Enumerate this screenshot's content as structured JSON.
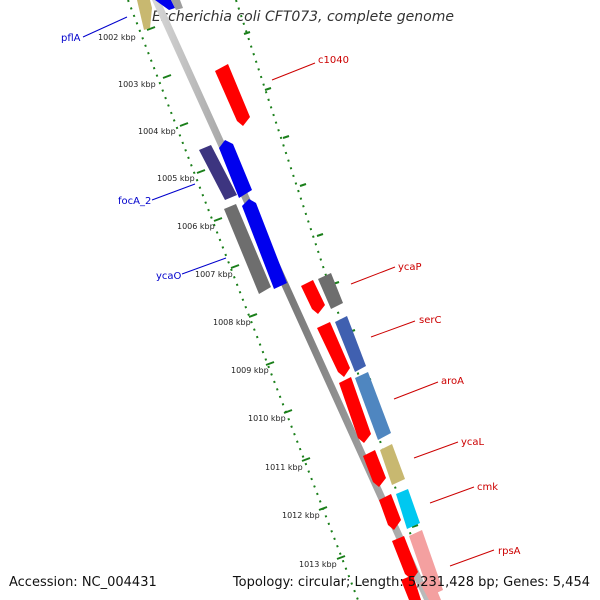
{
  "title": "Escherichia coli CFT073, complete genome",
  "footer": {
    "accession": "Accession: NC_004431",
    "summary": "Topology: circular; Length: 5,231,428 bp; Genes: 5,454"
  },
  "ruler": {
    "ticks": [
      "1002 kbp",
      "1003 kbp",
      "1004 kbp",
      "1005 kbp",
      "1006 kbp",
      "1007 kbp",
      "1008 kbp",
      "1009 kbp",
      "1010 kbp",
      "1011 kbp",
      "1012 kbp",
      "1013 kbp"
    ]
  },
  "genes": {
    "reverse": [
      {
        "label": "pflA"
      },
      {
        "label": "focA_2"
      },
      {
        "label": "ycaO"
      }
    ],
    "forward": [
      {
        "label": "c1040"
      },
      {
        "label": "ycaP"
      },
      {
        "label": "serC"
      },
      {
        "label": "aroA"
      },
      {
        "label": "ycaL"
      },
      {
        "label": "cmk"
      },
      {
        "label": "rpsA"
      }
    ]
  },
  "colors": {
    "forward_gene": "#ff0000",
    "reverse_gene": "#0000ff",
    "reverse_label": "#0000cc",
    "forward_label": "#cc0000",
    "tick": "#1a7f1a",
    "backbone": "#808080"
  }
}
